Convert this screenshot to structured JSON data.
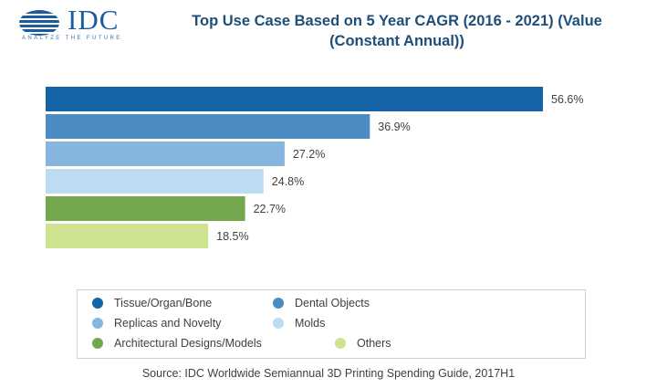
{
  "logo": {
    "name": "IDC",
    "tagline": "ANALYZE THE FUTURE",
    "color": "#1a5c9e"
  },
  "source": "Source: IDC Worldwide Semiannual 3D Printing Spending Guide, 2017H1",
  "chart_data": {
    "type": "bar",
    "orientation": "horizontal",
    "title": "Top Use Case Based on 5 Year CAGR (2016 - 2021) (Value (Constant Annual))",
    "xlabel": "",
    "ylabel": "",
    "xlim": [
      0,
      60
    ],
    "grid": false,
    "legend_position": "bottom",
    "value_suffix": "%",
    "categories": [
      "Tissue/Organ/Bone",
      "Dental Objects",
      "Replicas and Novelty",
      "Molds",
      "Architectural Designs/Models",
      "Others"
    ],
    "values": [
      56.6,
      36.9,
      27.2,
      24.8,
      22.7,
      18.5
    ],
    "labels": [
      "56.6%",
      "36.9%",
      "27.2%",
      "24.8%",
      "22.7%",
      "18.5%"
    ],
    "colors": [
      "#1565a6",
      "#4a8cc3",
      "#86b6de",
      "#bcdcf3",
      "#73a84e",
      "#cde38f"
    ]
  }
}
